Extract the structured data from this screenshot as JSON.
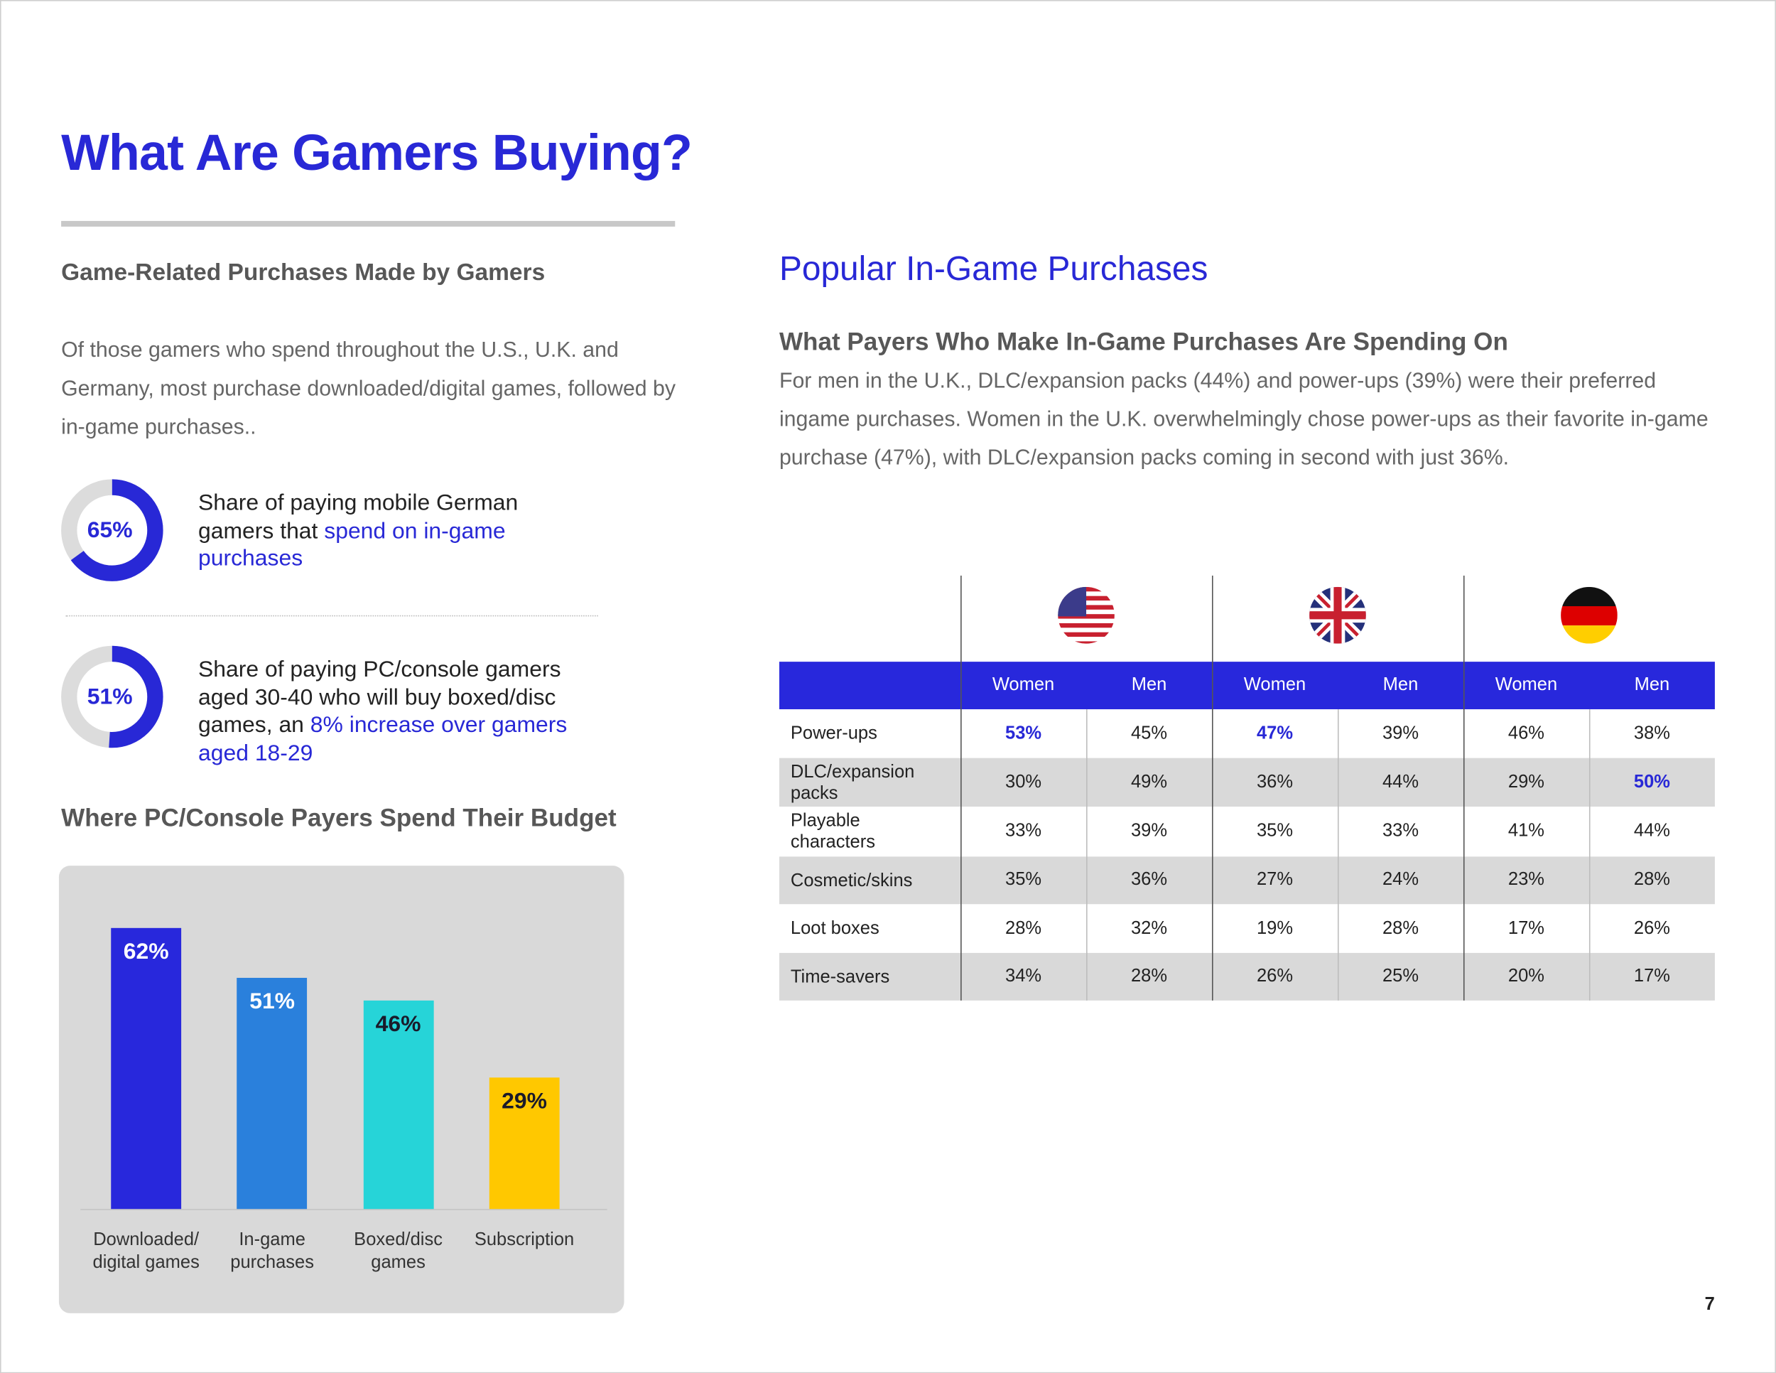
{
  "header": {
    "title": "What Are Gamers Buying?"
  },
  "left": {
    "heading": "Game-Related Purchases Made by Gamers",
    "intro": "Of those gamers who spend throughout the U.S., U.K. and Germany, most purchase downloaded/digital games, followed by in-game purchases..",
    "stats": [
      {
        "value": 65,
        "label": "65%",
        "text": "Share of paying mobile German gamers that",
        "highlight": "spend on in-game purchases"
      },
      {
        "value": 51,
        "label": "51%",
        "text": "Share of paying PC/console gamers aged 30-40 who will buy boxed/disc games, an",
        "highlight": "8% increase over gamers aged 18-29"
      }
    ]
  },
  "chart_data": {
    "type": "bar",
    "title": "Where PC/Console Payers Spend Their Budget",
    "categories": [
      "Downloaded/ digital games",
      "In-game purchases",
      "Boxed/disc games",
      "Subscription"
    ],
    "values": [
      62,
      51,
      46,
      29
    ],
    "value_labels": [
      "62%",
      "51%",
      "46%",
      "29%"
    ],
    "colors": [
      "#2828dc",
      "#2a80dc",
      "#26d4d8",
      "#ffc800"
    ],
    "value_label_colors": [
      "#ffffff",
      "#ffffff",
      "#1a1a2a",
      "#1a1a2a"
    ]
  },
  "right": {
    "title": "Popular In-Game Purchases",
    "subtitle": "What Payers Who Make In-Game Purchases Are Spending On",
    "body": "For men in the U.K., DLC/expansion packs (44%) and power-ups (39%) were their preferred ingame purchases. Women in the U.K. overwhelmingly chose power-ups as their favorite in-game purchase (47%), with DLC/expansion packs coming in second with just 36%."
  },
  "table": {
    "columns": [
      "Women",
      "Men",
      "Women",
      "Men",
      "Women",
      "Men"
    ],
    "rows": [
      {
        "label": "Power-ups",
        "cells": [
          {
            "text": "53%",
            "emphasis": true
          },
          "45%",
          {
            "text": "47%",
            "emphasis": true
          },
          "39%",
          "46%",
          "38%"
        ]
      },
      {
        "label": "DLC/expansion packs",
        "cells": [
          "30%",
          "49%",
          "36%",
          "44%",
          "29%",
          {
            "text": "50%",
            "emphasis": true
          }
        ]
      },
      {
        "label": "Playable characters",
        "cells": [
          "33%",
          "39%",
          "35%",
          "33%",
          "41%",
          "44%"
        ]
      },
      {
        "label": "Cosmetic/skins",
        "cells": [
          "35%",
          "36%",
          "27%",
          "24%",
          "23%",
          "28%"
        ]
      },
      {
        "label": "Loot boxes",
        "cells": [
          "28%",
          "32%",
          "19%",
          "28%",
          "17%",
          "26%"
        ]
      },
      {
        "label": "Time-savers",
        "cells": [
          "34%",
          "28%",
          "26%",
          "25%",
          "20%",
          "17%"
        ]
      }
    ]
  },
  "page_number": "7"
}
